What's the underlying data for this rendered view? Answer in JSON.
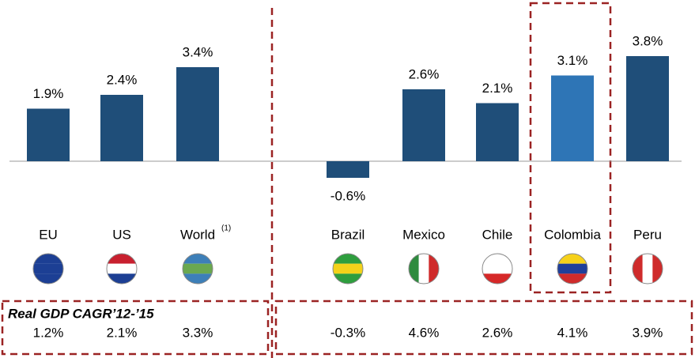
{
  "chart_data": {
    "type": "bar",
    "categories": [
      "EU",
      "US",
      "World",
      "Brazil",
      "Mexico",
      "Chile",
      "Colombia",
      "Peru"
    ],
    "footnote_marker": "(1)",
    "values": [
      1.9,
      2.4,
      3.4,
      -0.6,
      2.6,
      2.1,
      3.1,
      3.8
    ],
    "value_labels": [
      "1.9%",
      "2.4%",
      "3.4%",
      "-0.6%",
      "2.6%",
      "2.1%",
      "3.1%",
      "3.8%"
    ],
    "colors": [
      "#1f4e79",
      "#1f4e79",
      "#1f4e79",
      "#1f4e79",
      "#1f4e79",
      "#1f4e79",
      "#2e75b6",
      "#1f4e79"
    ],
    "cagr_title": "Real GDP CAGR’12-’15",
    "cagr_row": [
      "1.2%",
      "2.1%",
      "3.3%",
      "-0.3%",
      "4.6%",
      "2.6%",
      "4.1%",
      "3.9%"
    ]
  }
}
